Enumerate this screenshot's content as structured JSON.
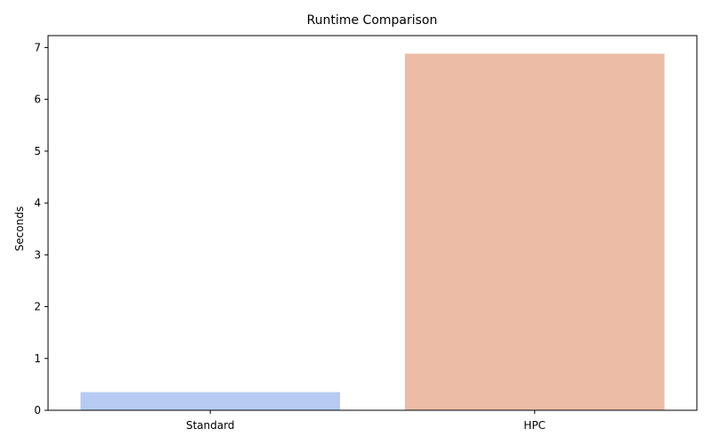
{
  "chart_data": {
    "type": "bar",
    "title": "Runtime Comparison",
    "xlabel": "",
    "ylabel": "Seconds",
    "categories": [
      "Standard",
      "HPC"
    ],
    "values": [
      0.35,
      6.88
    ],
    "colors": [
      "#b5cbf2",
      "#ecbca6"
    ],
    "ylim": [
      0,
      7.23
    ],
    "yticks": [
      0,
      1,
      2,
      3,
      4,
      5,
      6,
      7
    ],
    "grid": false,
    "legend": "none"
  }
}
